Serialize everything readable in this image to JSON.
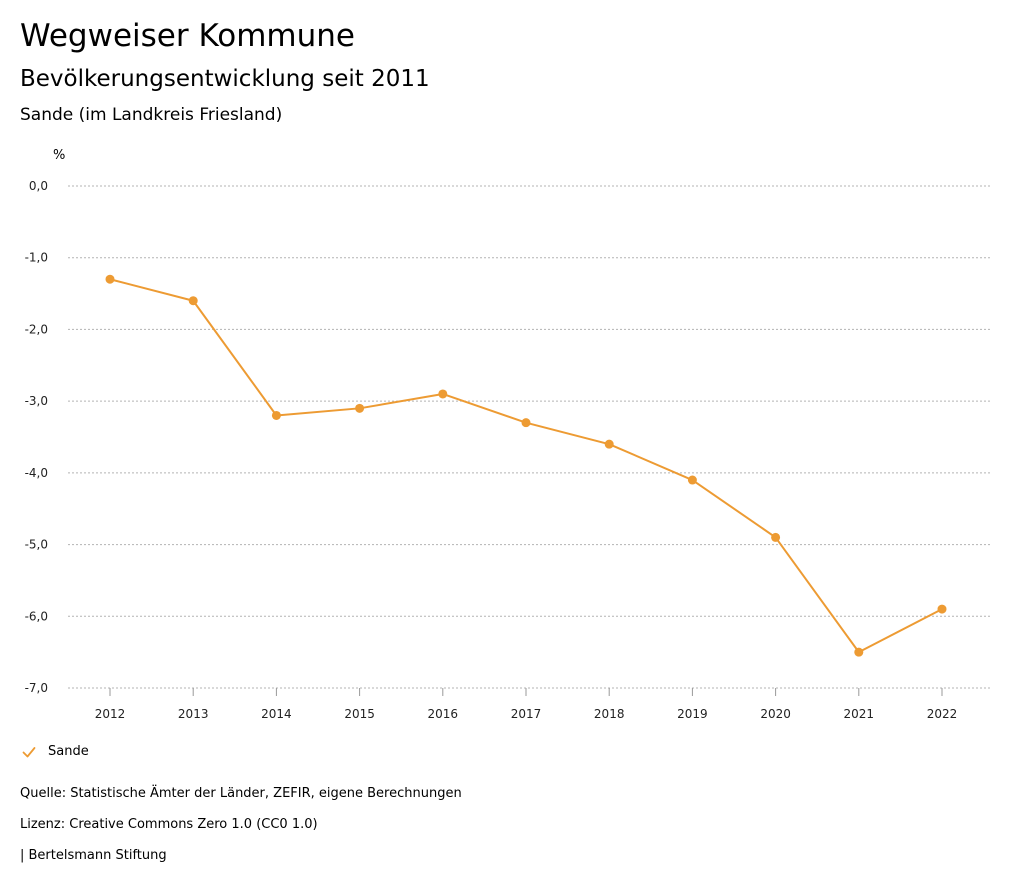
{
  "header": {
    "title": "Wegweiser Kommune",
    "subtitle": "Bevölkerungsentwicklung seit 2011",
    "region": "Sande (im Landkreis Friesland)"
  },
  "legend": {
    "label": "Sande"
  },
  "footer": {
    "source": "Quelle: Statistische Ämter der Länder, ZEFIR, eigene Berechnungen",
    "license": "Lizenz: Creative Commons Zero 1.0 (CC0 1.0)",
    "brand": "| Bertelsmann Stiftung"
  },
  "colors": {
    "series": "#ed9b33",
    "grid": "#b3b3b3"
  },
  "chart_data": {
    "type": "line",
    "title": "Bevölkerungsentwicklung seit 2011",
    "ylabel": "%",
    "xlabel": "",
    "categories": [
      "2012",
      "2013",
      "2014",
      "2015",
      "2016",
      "2017",
      "2018",
      "2019",
      "2020",
      "2021",
      "2022"
    ],
    "series": [
      {
        "name": "Sande",
        "values": [
          -1.3,
          -1.6,
          -3.2,
          -3.1,
          -2.9,
          -3.3,
          -3.6,
          -4.1,
          -4.9,
          -6.5,
          -5.9
        ]
      }
    ],
    "ylim": [
      -7.0,
      0.0
    ],
    "yticks": [
      0.0,
      -1.0,
      -2.0,
      -3.0,
      -4.0,
      -5.0,
      -6.0,
      -7.0
    ],
    "ytick_labels": [
      "0,0",
      "-1,0",
      "-2,0",
      "-3,0",
      "-4,0",
      "-5,0",
      "-6,0",
      "-7,0"
    ],
    "grid": true,
    "legend_position": "bottom-left"
  }
}
